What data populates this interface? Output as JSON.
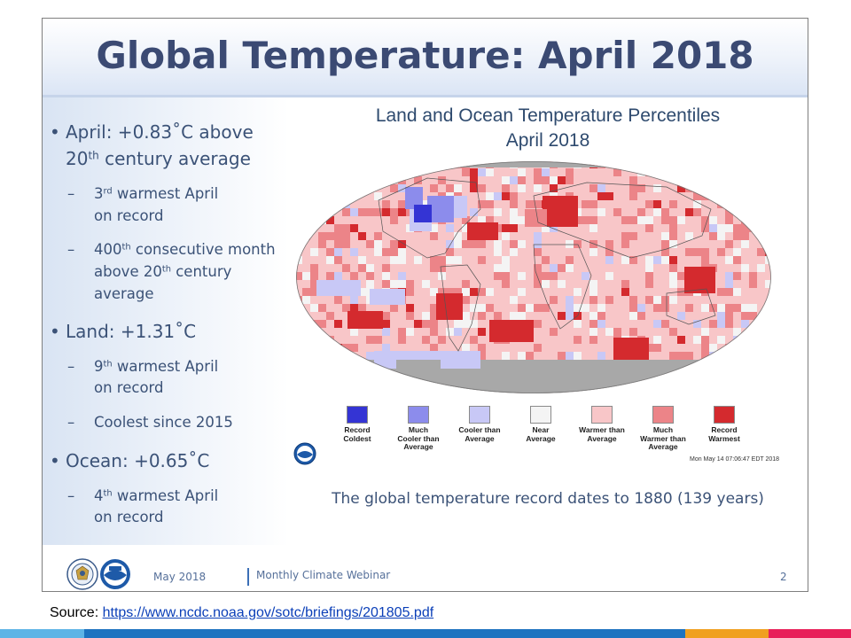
{
  "slide": {
    "title": "Global Temperature: April 2018",
    "bullets": [
      {
        "level": 1,
        "parts": [
          "April: +0.83˚C above"
        ]
      },
      {
        "level": 1,
        "parts": [
          "20",
          "th",
          " century average"
        ],
        "continuation": true
      },
      {
        "level": 2,
        "parts": [
          "3",
          "rd",
          " warmest April"
        ]
      },
      {
        "level": 2,
        "parts": [
          "on record"
        ],
        "continuation": true
      },
      {
        "level": 2,
        "parts": [
          "400",
          "th",
          " consecutive month"
        ]
      },
      {
        "level": 2,
        "parts": [
          "above 20",
          "th",
          " century"
        ],
        "continuation": true
      },
      {
        "level": 2,
        "parts": [
          "average"
        ],
        "continuation": true
      },
      {
        "level": 1,
        "parts": [
          "Land: +1.31˚C"
        ]
      },
      {
        "level": 2,
        "parts": [
          "9",
          "th",
          " warmest April"
        ]
      },
      {
        "level": 2,
        "parts": [
          "on record"
        ],
        "continuation": true
      },
      {
        "level": 2,
        "parts": [
          "Coolest since 2015"
        ]
      },
      {
        "level": 1,
        "parts": [
          "Ocean: +0.65˚C"
        ]
      },
      {
        "level": 2,
        "parts": [
          "4",
          "th",
          " warmest April"
        ]
      },
      {
        "level": 2,
        "parts": [
          "on record"
        ],
        "continuation": true
      }
    ],
    "record_note": "The global temperature record dates to 1880 (139 years)",
    "footer": {
      "date": "May 2018",
      "webinar": "Monthly Climate Webinar",
      "page": "2"
    }
  },
  "map": {
    "title_line1": "Land and Ocean Temperature Percentiles",
    "title_line2": "April 2018",
    "timestamp": "Mon May 14 07:06:47 EDT 2018",
    "legend": [
      {
        "lines": [
          "Record",
          "Coldest"
        ],
        "color": "#3434d4"
      },
      {
        "lines": [
          "Much",
          "Cooler than",
          "Average"
        ],
        "color": "#8c8cec"
      },
      {
        "lines": [
          "Cooler than",
          "Average"
        ],
        "color": "#c8c8f6"
      },
      {
        "lines": [
          "Near",
          "Average"
        ],
        "color": "#f4f4f4"
      },
      {
        "lines": [
          "Warmer than",
          "Average"
        ],
        "color": "#f8c6c8"
      },
      {
        "lines": [
          "Much",
          "Warmer than",
          "Average"
        ],
        "color": "#ec8488"
      },
      {
        "lines": [
          "Record",
          "Warmest"
        ],
        "color": "#d42a2e"
      }
    ],
    "no_data_color": "#a8a8a8"
  },
  "source": {
    "label": "Source: ",
    "url": "https://www.ncdc.noaa.gov/sotc/briefings/201805.pdf"
  },
  "colors": {
    "title": "#3b4a73",
    "bullet_text": "#3b5277",
    "bottom_bar": [
      "#5eb4e6",
      "#1e73c0",
      "#f0a020",
      "#e8205a"
    ]
  }
}
